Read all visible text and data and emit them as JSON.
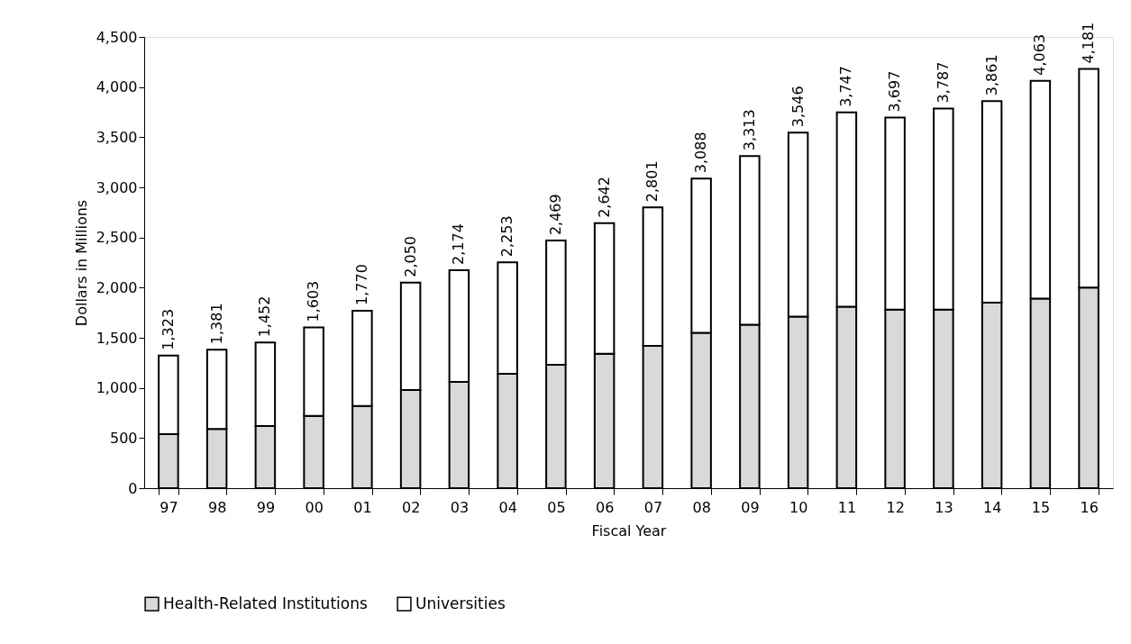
{
  "chart_data": {
    "type": "bar",
    "stacked": true,
    "xlabel": "Fiscal Year",
    "ylabel": "Dollars in Millions",
    "categories": [
      "97",
      "98",
      "99",
      "00",
      "01",
      "02",
      "03",
      "04",
      "05",
      "06",
      "07",
      "08",
      "09",
      "10",
      "11",
      "12",
      "13",
      "14",
      "15",
      "16"
    ],
    "series": [
      {
        "name": "Health-Related Institutions",
        "color": "#d9d9d9",
        "values": [
          540,
          590,
          620,
          720,
          820,
          980,
          1060,
          1140,
          1230,
          1340,
          1420,
          1550,
          1630,
          1710,
          1810,
          1780,
          1780,
          1850,
          1890,
          2000
        ]
      },
      {
        "name": "Universities",
        "color": "#ffffff",
        "values": [
          783,
          791,
          832,
          883,
          950,
          1070,
          1114,
          1113,
          1239,
          1302,
          1381,
          1538,
          1683,
          1836,
          1937,
          1917,
          2007,
          2011,
          2173,
          2181
        ]
      }
    ],
    "totals": [
      "1,323",
      "1,381",
      "1,452",
      "1,603",
      "1,770",
      "2,050",
      "2,174",
      "2,253",
      "2,469",
      "2,642",
      "2,801",
      "3,088",
      "3,313",
      "3,546",
      "3,747",
      "3,697",
      "3,787",
      "3,861",
      "4,063",
      "4,181"
    ],
    "ylim": [
      0,
      4500
    ],
    "yticks": [
      0,
      500,
      {
        "value": 1000,
        "label": "1,000"
      },
      {
        "value": 1500,
        "label": "1,500"
      },
      {
        "value": 2000,
        "label": "2,000"
      },
      {
        "value": 2500,
        "label": "2,500"
      },
      {
        "value": 3000,
        "label": "3,000"
      },
      {
        "value": 3500,
        "label": "3,500"
      },
      {
        "value": 4000,
        "label": "4,000"
      },
      {
        "value": 4500,
        "label": "4,500"
      }
    ],
    "grid": false,
    "legend": "bottom"
  }
}
